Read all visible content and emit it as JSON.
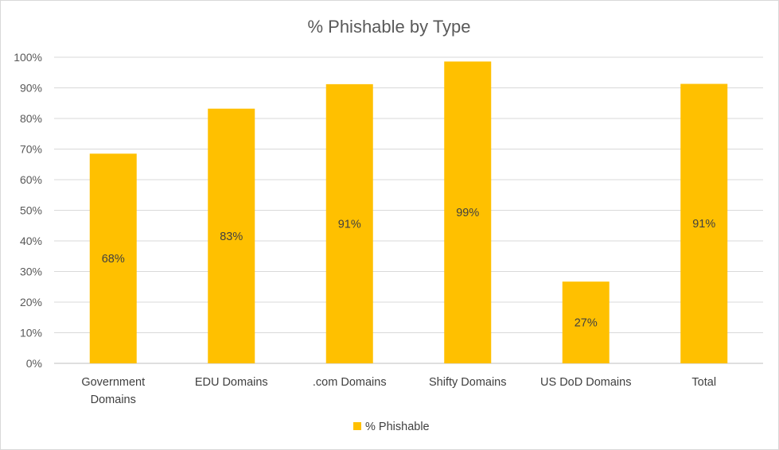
{
  "chart_data": {
    "type": "bar",
    "title": "% Phishable by Type",
    "categories": [
      [
        "Government",
        "Domains"
      ],
      [
        "EDU Domains"
      ],
      [
        ".com Domains"
      ],
      [
        "Shifty Domains"
      ],
      [
        "US DoD Domains"
      ],
      [
        "Total"
      ]
    ],
    "series": [
      {
        "name": "% Phishable",
        "values": [
          68.5,
          83.2,
          91.2,
          98.6,
          26.7,
          91.3
        ],
        "labels": [
          "68%",
          "83%",
          "91%",
          "99%",
          "27%",
          "91%"
        ],
        "color": "#FFC000"
      }
    ],
    "ylim": [
      0,
      100
    ],
    "yticks": [
      0,
      10,
      20,
      30,
      40,
      50,
      60,
      70,
      80,
      90,
      100
    ],
    "ytick_labels": [
      "0%",
      "10%",
      "20%",
      "30%",
      "40%",
      "50%",
      "60%",
      "70%",
      "80%",
      "90%",
      "100%"
    ],
    "xlabel": "",
    "ylabel": "",
    "grid": true,
    "legend": "bottom"
  }
}
